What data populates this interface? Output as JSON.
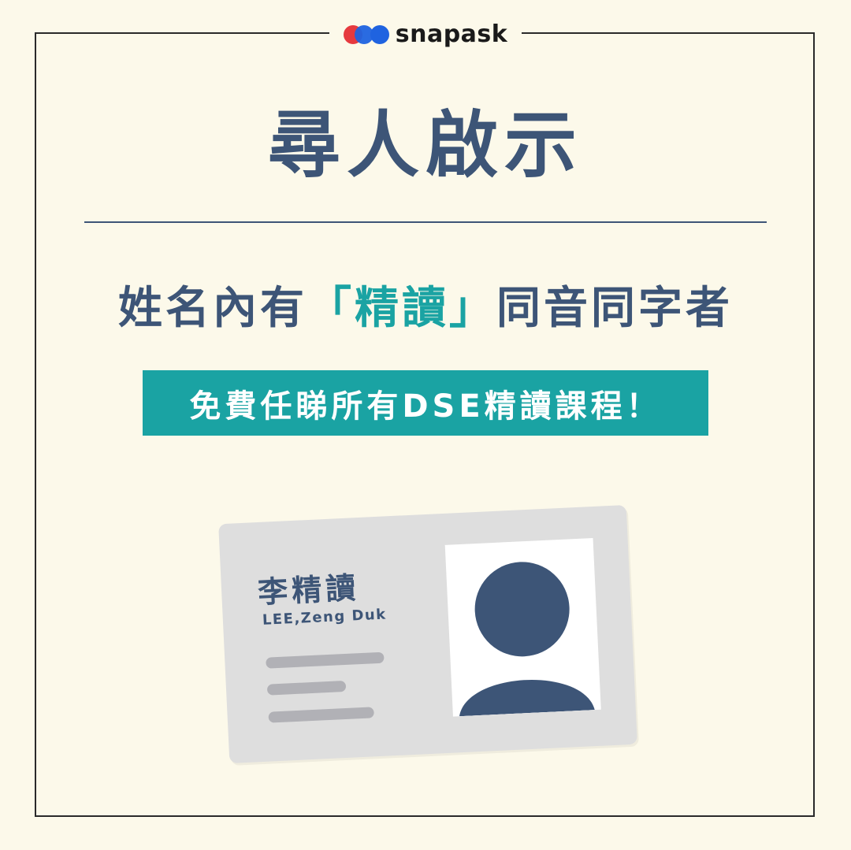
{
  "brand": {
    "logo_text": "snapask",
    "colors": {
      "red": "#e63a3f",
      "blue": "#1f63e0"
    }
  },
  "headline": "尋人啟示",
  "subline": {
    "before": "姓名內有",
    "open_bracket": "「",
    "highlight": "精讀",
    "close_bracket": "」",
    "after": "同音同字者"
  },
  "banner": "免費任睇所有DSE精讀課程！",
  "id_card": {
    "name_zh": "李精讀",
    "name_en": "LEE,Zeng Duk",
    "photo_icon": "person-silhouette-icon"
  },
  "colors": {
    "background": "#fcf9ea",
    "navy": "#3d5577",
    "teal": "#1aa3a3",
    "card": "#dedede",
    "card_lines": "#b1b1b6"
  }
}
